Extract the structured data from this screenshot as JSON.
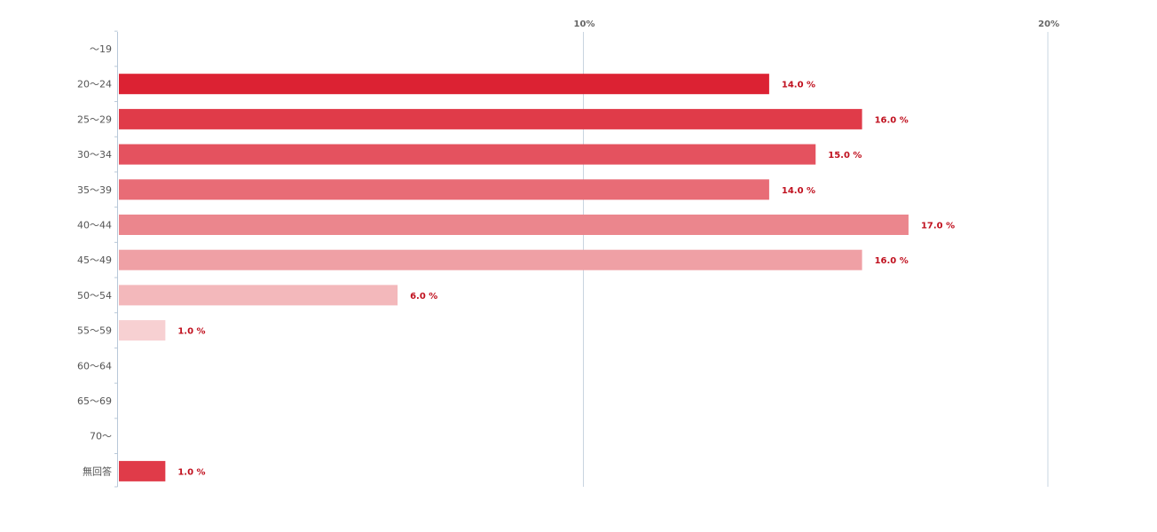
{
  "chart_data": {
    "type": "bar",
    "orientation": "horizontal",
    "categories": [
      "〜19",
      "20〜24",
      "25〜29",
      "30〜34",
      "35〜39",
      "40〜44",
      "45〜49",
      "50〜54",
      "55〜59",
      "60〜64",
      "65〜69",
      "70〜",
      "無回答"
    ],
    "values": [
      0,
      14.0,
      16.0,
      15.0,
      14.0,
      17.0,
      16.0,
      6.0,
      1.0,
      0,
      0,
      0,
      1.0
    ],
    "value_labels": [
      "",
      "14.0 %",
      "16.0 %",
      "15.0 %",
      "14.0 %",
      "17.0 %",
      "16.0 %",
      "6.0 %",
      "1.0 %",
      "",
      "",
      "",
      "1.0 %"
    ],
    "bar_colors": [
      "#dc2233",
      "#dc2233",
      "#e03b49",
      "#e4525f",
      "#e86c76",
      "#eb868d",
      "#efa0a5",
      "#f3b8bb",
      "#f7d0d2",
      "#f7d0d2",
      "#f7d0d2",
      "#f7d0d2",
      "#e03b49"
    ],
    "x_ticks": [
      {
        "value": 10,
        "label": "10%"
      },
      {
        "value": 20,
        "label": "20%"
      }
    ],
    "xlim": [
      0,
      20
    ],
    "grid": true,
    "title": "",
    "xlabel": "",
    "ylabel": "",
    "colors": {
      "value_label": "#c0101e",
      "category_label": "#555555",
      "tick_label": "#666666",
      "axis": "#b8c8d8",
      "grid": "#c8d4e0"
    }
  }
}
